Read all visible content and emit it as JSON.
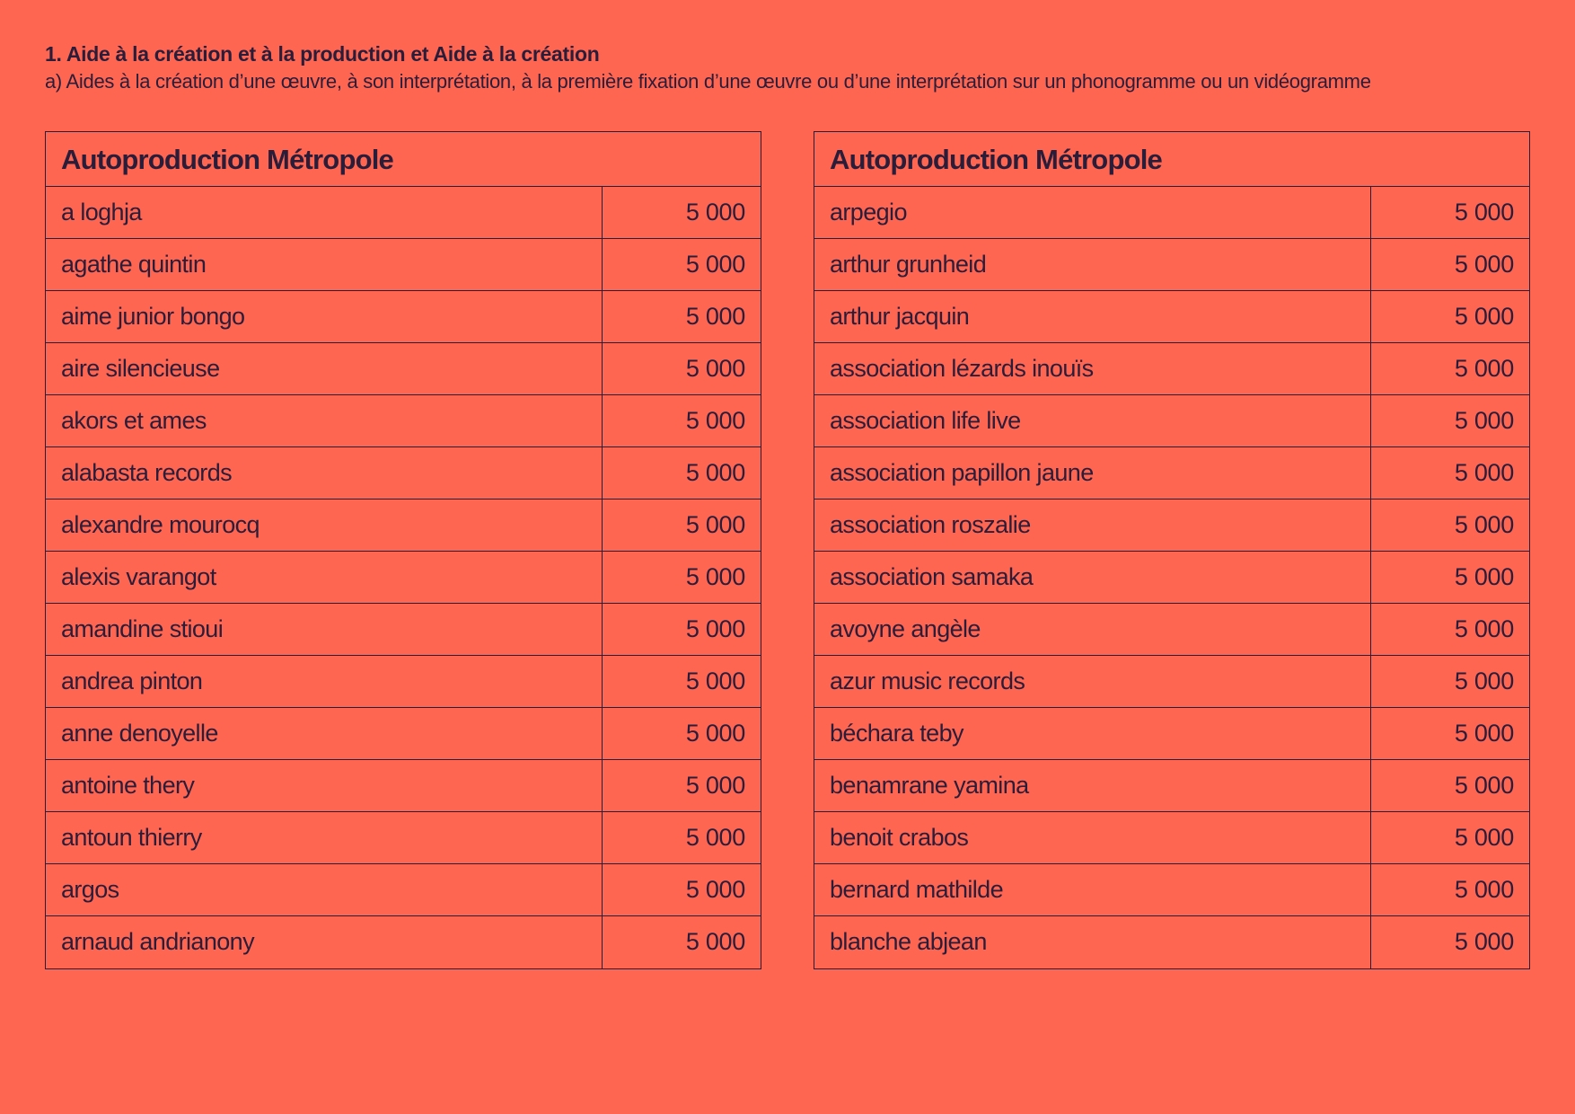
{
  "header": {
    "heading": "1. Aide à la création et à la production et Aide à la création",
    "subheading": "a) Aides à la création d’une œuvre, à son interprétation, à la première fixation d’une œuvre ou d’une interprétation sur un phonogramme ou un vidéogramme"
  },
  "tables": [
    {
      "title": "Autoproduction Métropole",
      "rows": [
        {
          "name": "a loghja",
          "amount": "5 000"
        },
        {
          "name": "agathe quintin",
          "amount": "5 000"
        },
        {
          "name": "aime junior bongo",
          "amount": "5 000"
        },
        {
          "name": "aire silencieuse",
          "amount": "5 000"
        },
        {
          "name": "akors et ames",
          "amount": "5 000"
        },
        {
          "name": "alabasta records",
          "amount": "5 000"
        },
        {
          "name": "alexandre mourocq",
          "amount": "5 000"
        },
        {
          "name": "alexis varangot",
          "amount": "5 000"
        },
        {
          "name": "amandine stioui",
          "amount": "5 000"
        },
        {
          "name": "andrea pinton",
          "amount": "5 000"
        },
        {
          "name": "anne denoyelle",
          "amount": "5 000"
        },
        {
          "name": "antoine thery",
          "amount": "5 000"
        },
        {
          "name": "antoun thierry",
          "amount": "5 000"
        },
        {
          "name": "argos",
          "amount": "5 000"
        },
        {
          "name": "arnaud andrianony",
          "amount": "5 000"
        }
      ]
    },
    {
      "title": "Autoproduction Métropole",
      "rows": [
        {
          "name": "arpegio",
          "amount": "5 000"
        },
        {
          "name": "arthur grunheid",
          "amount": "5 000"
        },
        {
          "name": "arthur jacquin",
          "amount": "5 000"
        },
        {
          "name": "association lézards inouïs",
          "amount": "5 000"
        },
        {
          "name": "association life live",
          "amount": "5 000"
        },
        {
          "name": "association papillon jaune",
          "amount": "5 000"
        },
        {
          "name": "association roszalie",
          "amount": "5 000"
        },
        {
          "name": "association samaka",
          "amount": "5 000"
        },
        {
          "name": "avoyne angèle",
          "amount": "5 000"
        },
        {
          "name": "azur music records",
          "amount": "5 000"
        },
        {
          "name": "béchara teby",
          "amount": "5 000"
        },
        {
          "name": "benamrane yamina",
          "amount": "5 000"
        },
        {
          "name": "benoit crabos",
          "amount": "5 000"
        },
        {
          "name": "bernard mathilde",
          "amount": "5 000"
        },
        {
          "name": "blanche abjean",
          "amount": "5 000"
        }
      ]
    }
  ]
}
